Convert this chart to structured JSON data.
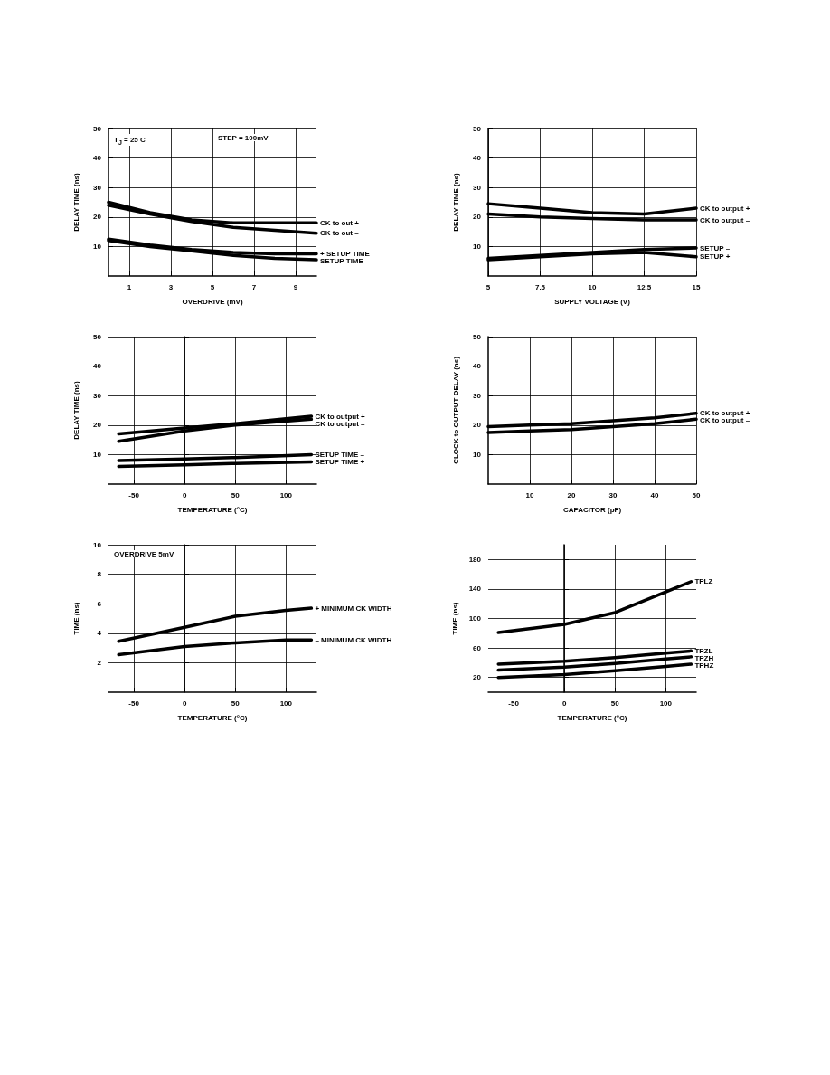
{
  "chart_data": [
    {
      "type": "line",
      "xlabel": "OVERDRIVE (mV)",
      "ylabel": "DELAY TIME (ns)",
      "x": [
        0,
        2,
        4,
        6,
        8,
        10
      ],
      "xlim": [
        0,
        10
      ],
      "xticks": [
        1,
        3,
        5,
        7,
        9
      ],
      "ylim": [
        0,
        50
      ],
      "yticks": [
        10,
        20,
        30,
        40,
        50
      ],
      "grid": true,
      "annotations": [
        "T$_{J}$ = 25 C",
        "STEP = 100mV"
      ],
      "series": [
        {
          "name": "CK to out +",
          "color": "#000000",
          "values": [
            25,
            21.5,
            19,
            18,
            18,
            18
          ]
        },
        {
          "name": "CK to out –",
          "color": "#000000",
          "values": [
            24,
            21,
            18.5,
            16.5,
            15.5,
            14.5
          ]
        },
        {
          "name": "+ SETUP TIME",
          "color": "#000000",
          "values": [
            12.5,
            10.5,
            9,
            8,
            7.5,
            7.5
          ]
        },
        {
          "name": "SETUP TIME",
          "color": "#000000",
          "values": [
            12,
            10,
            8.5,
            7,
            6,
            5.5
          ]
        }
      ]
    },
    {
      "type": "line",
      "xlabel": "SUPPLY VOLTAGE (V)",
      "ylabel": "DELAY TIME (ns)",
      "x": [
        5,
        7.5,
        10,
        12.5,
        15
      ],
      "xlim": [
        5,
        15
      ],
      "xticks": [
        5,
        7.5,
        10,
        12.5,
        15
      ],
      "ylim": [
        0,
        50
      ],
      "yticks": [
        10,
        20,
        30,
        40,
        50
      ],
      "grid": true,
      "series": [
        {
          "name": "CK to output +",
          "color": "#000000",
          "values": [
            24.5,
            23,
            21.5,
            21,
            23
          ]
        },
        {
          "name": "CK to output –",
          "color": "#000000",
          "values": [
            21,
            20,
            19.5,
            19,
            19
          ]
        },
        {
          "name": "SETUP –",
          "color": "#000000",
          "values": [
            6,
            7,
            8,
            9,
            9.5
          ]
        },
        {
          "name": "SETUP +",
          "color": "#000000",
          "values": [
            5.5,
            6.5,
            7.5,
            8,
            6.5
          ]
        }
      ]
    },
    {
      "type": "line",
      "xlabel": "TEMPERATURE (°C)",
      "ylabel": "DELAY TIME (ns)",
      "x": [
        -65,
        0,
        50,
        125
      ],
      "xlim": [
        -75,
        130
      ],
      "xticks": [
        -50,
        0,
        50,
        100
      ],
      "ylim": [
        0,
        50
      ],
      "yticks": [
        10,
        20,
        30,
        40,
        50
      ],
      "grid": true,
      "series": [
        {
          "name": "CK to output +",
          "color": "#000000",
          "values": [
            17,
            19,
            20.5,
            23
          ]
        },
        {
          "name": "CK to output –",
          "color": "#000000",
          "values": [
            14.5,
            18,
            20,
            22
          ]
        },
        {
          "name": "SETUP TIME –",
          "color": "#000000",
          "values": [
            8,
            8.5,
            9,
            10
          ]
        },
        {
          "name": "SETUP TIME +",
          "color": "#000000",
          "values": [
            6,
            6.5,
            7,
            7.5
          ]
        }
      ]
    },
    {
      "type": "line",
      "xlabel": "CAPACITOR (pF)",
      "ylabel": "CLOCK to OUTPUT DELAY (ns)",
      "x": [
        0,
        10,
        20,
        30,
        40,
        50
      ],
      "xlim": [
        0,
        50
      ],
      "xticks": [
        10,
        20,
        30,
        40,
        50
      ],
      "ylim": [
        0,
        50
      ],
      "yticks": [
        10,
        20,
        30,
        40,
        50
      ],
      "grid": true,
      "series": [
        {
          "name": "CK to output +",
          "color": "#000000",
          "values": [
            19.5,
            20,
            20.5,
            21.5,
            22.5,
            24
          ]
        },
        {
          "name": "CK to output –",
          "color": "#000000",
          "values": [
            17.5,
            18,
            18.5,
            19.5,
            20.5,
            22
          ]
        }
      ]
    },
    {
      "type": "line",
      "xlabel": "TEMPERATURE (°C)",
      "ylabel": "TIME (ns)",
      "x": [
        -65,
        0,
        50,
        100,
        125
      ],
      "xlim": [
        -75,
        130
      ],
      "xticks": [
        -50,
        0,
        50,
        100
      ],
      "ylim": [
        0,
        10
      ],
      "yticks": [
        2,
        4,
        6,
        8,
        10
      ],
      "grid": true,
      "annotations": [
        "OVERDRIVE 5mV"
      ],
      "series": [
        {
          "name": "+ MINIMUM CK WIDTH",
          "color": "#000000",
          "values": [
            3.45,
            4.4,
            5.15,
            5.55,
            5.7
          ]
        },
        {
          "name": "– MINIMUM CK WIDTH",
          "color": "#000000",
          "values": [
            2.55,
            3.1,
            3.35,
            3.55,
            3.55
          ]
        }
      ]
    },
    {
      "type": "line",
      "xlabel": "TEMPERATURE (°C)",
      "ylabel": "TIME (ns)",
      "x": [
        -65,
        0,
        50,
        100,
        125
      ],
      "xlim": [
        -75,
        130
      ],
      "xticks": [
        -50,
        0,
        50,
        100
      ],
      "ylim": [
        0,
        200
      ],
      "yticks": [
        20,
        60,
        100,
        140,
        180
      ],
      "grid": true,
      "series": [
        {
          "name": "TPLZ",
          "color": "#000000",
          "values": [
            81,
            92,
            108,
            136,
            150
          ]
        },
        {
          "name": "TPZL",
          "color": "#000000",
          "values": [
            38,
            42,
            47,
            53,
            56
          ]
        },
        {
          "name": "TPZH",
          "color": "#000000",
          "values": [
            30,
            34,
            39,
            45,
            48
          ]
        },
        {
          "name": "TPHZ",
          "color": "#000000",
          "values": [
            20,
            24,
            29,
            35,
            38
          ]
        }
      ]
    }
  ]
}
